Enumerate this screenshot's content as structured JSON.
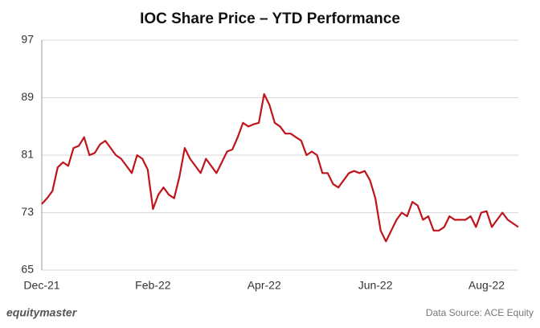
{
  "chart_data": {
    "type": "line",
    "title": "IOC Share Price – YTD Performance",
    "categories": [
      "Dec-21",
      null,
      null,
      null,
      null,
      null,
      null,
      null,
      null,
      null,
      null,
      null,
      null,
      null,
      null,
      null,
      null,
      null,
      null,
      null,
      null,
      "Feb-22",
      null,
      null,
      null,
      null,
      null,
      null,
      null,
      null,
      null,
      null,
      null,
      null,
      null,
      null,
      null,
      null,
      null,
      null,
      null,
      null,
      "Apr-22",
      null,
      null,
      null,
      null,
      null,
      null,
      null,
      null,
      null,
      null,
      null,
      null,
      null,
      null,
      null,
      null,
      null,
      null,
      null,
      null,
      "Jun-22",
      null,
      null,
      null,
      null,
      null,
      null,
      null,
      null,
      null,
      null,
      null,
      null,
      null,
      null,
      null,
      null,
      null,
      null,
      null,
      null,
      "Aug-22",
      null,
      null,
      null,
      null,
      null,
      null
    ],
    "values": [
      74.2,
      75,
      76,
      79.3,
      80,
      79.5,
      82,
      82.3,
      83.5,
      81,
      81.3,
      82.5,
      83,
      82,
      81,
      80.5,
      79.5,
      78.5,
      81,
      80.5,
      79,
      73.5,
      75.5,
      76.5,
      75.5,
      75,
      78,
      82,
      80.5,
      79.5,
      78.5,
      80.5,
      79.5,
      78.5,
      80,
      81.5,
      81.8,
      83.5,
      85.5,
      85,
      85.3,
      85.5,
      89.5,
      88,
      85.5,
      85,
      84,
      84,
      83.5,
      83,
      81,
      81.5,
      81,
      78.5,
      78.5,
      77,
      76.5,
      77.5,
      78.5,
      78.8,
      78.5,
      78.8,
      77.5,
      75,
      70.5,
      69,
      70.5,
      72,
      73,
      72.5,
      74.5,
      74,
      72,
      72.5,
      70.5,
      70.5,
      71,
      72.5,
      72,
      72,
      72,
      72.5,
      71,
      73,
      73.2,
      71,
      72,
      73,
      72,
      71.5,
      71
    ],
    "color": "#c0141c",
    "ylim": [
      65,
      97
    ],
    "yticks": [
      65,
      73,
      81,
      89,
      97
    ],
    "grid": true,
    "logo": "equitymaster",
    "source": "Data Source: ACE Equity"
  }
}
